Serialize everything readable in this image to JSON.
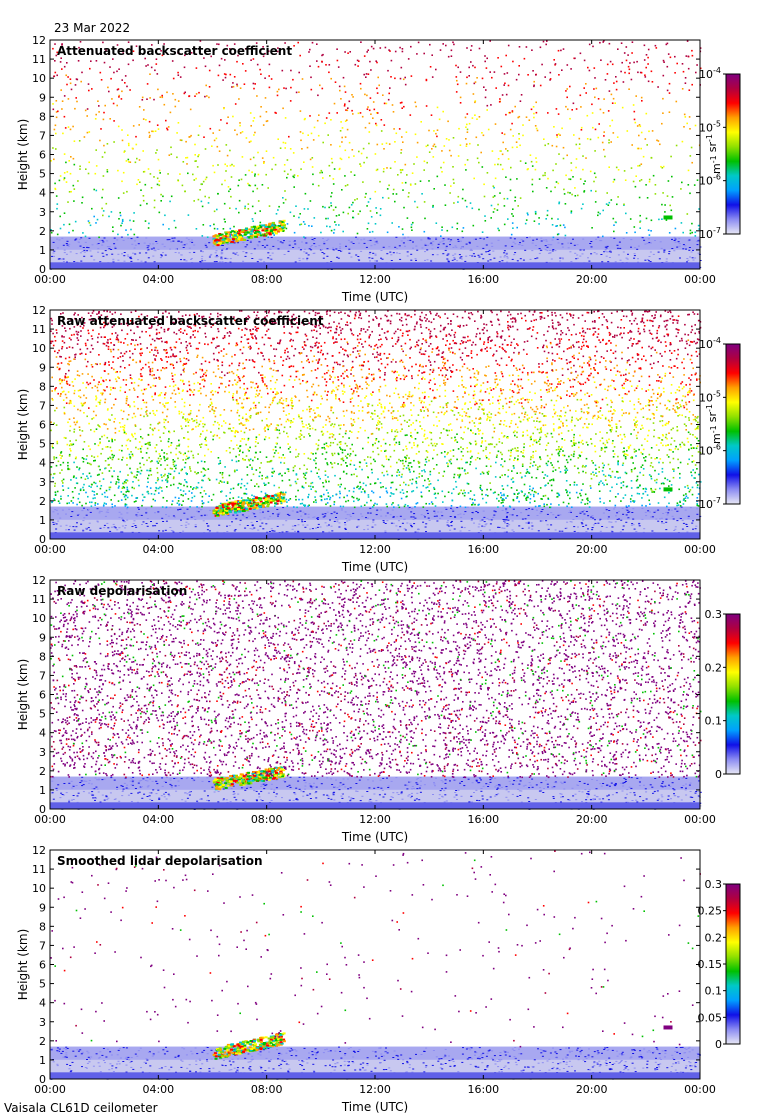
{
  "header": {
    "date": "23 Mar 2022"
  },
  "footer": {
    "instrument": "Vaisala CL61D ceilometer"
  },
  "colors": {
    "scale": [
      "#e8e8f4",
      "#8c8cf2",
      "#1010e8",
      "#00a0ff",
      "#00c8c8",
      "#00c000",
      "#90e000",
      "#ffff00",
      "#ffa000",
      "#ff0000",
      "#b00040",
      "#800080"
    ],
    "background": "#ffffff",
    "axes": "#000000"
  },
  "chart_data": [
    {
      "type": "heatmap",
      "title": "Attenuated backscatter coefficient",
      "xlabel": "Time (UTC)",
      "ylabel": "Height (km)",
      "x_ticks": [
        "00:00",
        "04:00",
        "08:00",
        "12:00",
        "16:00",
        "20:00",
        "00:00"
      ],
      "xlim": [
        0,
        24
      ],
      "y_ticks": [
        "0",
        "1",
        "2",
        "3",
        "4",
        "5",
        "6",
        "7",
        "8",
        "9",
        "10",
        "11",
        "12"
      ],
      "ylim": [
        0,
        12
      ],
      "colorbar": {
        "label": "m-1 sr-1",
        "scale": "log",
        "range": [
          1e-07,
          0.0001
        ],
        "ticks": [
          {
            "base": "10",
            "exp": "-4"
          },
          {
            "base": "10",
            "exp": "-5"
          },
          {
            "base": "10",
            "exp": "-6"
          },
          {
            "base": "10",
            "exp": "-7"
          }
        ]
      },
      "features": {
        "noise_density": 0.28,
        "boundary_layer_top_km": 1.7,
        "aerosol_layer": {
          "start_h": 6.0,
          "end_h": 8.6,
          "height_km": [
            1.1,
            2.6
          ]
        },
        "small_cloud": {
          "time_h": 22.8,
          "height_km": 2.7
        }
      }
    },
    {
      "type": "heatmap",
      "title": "Raw attenuated backscatter coefficient",
      "xlabel": "Time (UTC)",
      "ylabel": "Height (km)",
      "x_ticks": [
        "00:00",
        "04:00",
        "08:00",
        "12:00",
        "16:00",
        "20:00",
        "00:00"
      ],
      "xlim": [
        0,
        24
      ],
      "y_ticks": [
        "0",
        "1",
        "2",
        "3",
        "4",
        "5",
        "6",
        "7",
        "8",
        "9",
        "10",
        "11",
        "12"
      ],
      "ylim": [
        0,
        12
      ],
      "colorbar": {
        "label": "m-1 sr-1",
        "scale": "log",
        "range": [
          1e-07,
          0.0001
        ],
        "ticks": [
          {
            "base": "10",
            "exp": "-4"
          },
          {
            "base": "10",
            "exp": "-5"
          },
          {
            "base": "10",
            "exp": "-6"
          },
          {
            "base": "10",
            "exp": "-7"
          }
        ]
      },
      "features": {
        "noise_density": 0.9,
        "boundary_layer_top_km": 1.7,
        "aerosol_layer": {
          "start_h": 6.0,
          "end_h": 8.6,
          "height_km": [
            1.1,
            2.5
          ]
        },
        "small_cloud": {
          "time_h": 22.8,
          "height_km": 2.6
        }
      }
    },
    {
      "type": "heatmap",
      "title": "Raw depolarisation",
      "xlabel": "Time (UTC)",
      "ylabel": "Height (km)",
      "x_ticks": [
        "00:00",
        "04:00",
        "08:00",
        "12:00",
        "16:00",
        "20:00",
        "00:00"
      ],
      "xlim": [
        0,
        24
      ],
      "y_ticks": [
        "0",
        "1",
        "2",
        "3",
        "4",
        "5",
        "6",
        "7",
        "8",
        "9",
        "10",
        "11",
        "12"
      ],
      "ylim": [
        0,
        12
      ],
      "colorbar": {
        "label": "",
        "scale": "linear",
        "range": [
          0,
          0.3
        ],
        "ticks": [
          "0.3",
          "0.2",
          "0.1",
          "0"
        ]
      },
      "features": {
        "noise_density": 0.95,
        "boundary_layer_top_km": 1.7,
        "aerosol_layer": {
          "start_h": 6.0,
          "end_h": 8.6,
          "height_km": [
            0.9,
            2.3
          ]
        }
      }
    },
    {
      "type": "heatmap",
      "title": "Smoothed lidar depolarisation",
      "xlabel": "Time (UTC)",
      "ylabel": "Height (km)",
      "x_ticks": [
        "00:00",
        "04:00",
        "08:00",
        "12:00",
        "16:00",
        "20:00",
        "00:00"
      ],
      "xlim": [
        0,
        24
      ],
      "y_ticks": [
        "0",
        "1",
        "2",
        "3",
        "4",
        "5",
        "6",
        "7",
        "8",
        "9",
        "10",
        "11",
        "12"
      ],
      "ylim": [
        0,
        12
      ],
      "colorbar": {
        "label": "",
        "scale": "linear",
        "range": [
          0,
          0.3
        ],
        "ticks": [
          "0.3",
          "0.25",
          "0.2",
          "0.15",
          "0.1",
          "0.05",
          "0"
        ]
      },
      "features": {
        "noise_density": 0.05,
        "boundary_layer_top_km": 1.7,
        "aerosol_layer": {
          "start_h": 6.0,
          "end_h": 8.6,
          "height_km": [
            0.9,
            2.5
          ]
        },
        "small_cloud": {
          "time_h": 22.8,
          "height_km": 2.7
        }
      }
    }
  ]
}
